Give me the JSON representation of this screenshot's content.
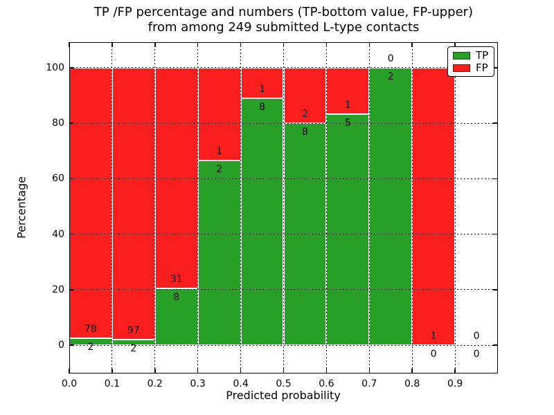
{
  "title": {
    "line1": "TP /FP percentage and numbers (TP-bottom value, FP-upper)",
    "line2": "from among 249 submitted L-type contacts"
  },
  "axes": {
    "xlabel": "Predicted probability",
    "ylabel": "Percentage",
    "x_ticks": [
      "0.0",
      "0.1",
      "0.2",
      "0.3",
      "0.4",
      "0.5",
      "0.6",
      "0.7",
      "0.8",
      "0.9"
    ],
    "y_ticks": [
      0,
      20,
      40,
      60,
      80,
      100
    ],
    "grid_style": "dotted"
  },
  "legend": {
    "position": "upper-right-inside"
  },
  "chart_data": {
    "type": "bar",
    "stacked": true,
    "title": "TP /FP percentage and numbers (TP-bottom value, FP-upper) from among 249 submitted L-type contacts",
    "xlabel": "Predicted probability",
    "ylabel": "Percentage",
    "total_submitted": 249,
    "xlim": [
      0.0,
      1.0
    ],
    "ylim": [
      -10.2,
      109.2
    ],
    "bin_width": 0.1,
    "series": [
      {
        "name": "TP",
        "color": "#28a028"
      },
      {
        "name": "FP",
        "color": "#fa1e1e"
      }
    ],
    "bins": [
      {
        "x0": 0.0,
        "x1": 0.1,
        "tp": 2,
        "fp": 78
      },
      {
        "x0": 0.1,
        "x1": 0.2,
        "tp": 2,
        "fp": 97
      },
      {
        "x0": 0.2,
        "x1": 0.3,
        "tp": 8,
        "fp": 31
      },
      {
        "x0": 0.3,
        "x1": 0.4,
        "tp": 2,
        "fp": 1
      },
      {
        "x0": 0.4,
        "x1": 0.5,
        "tp": 8,
        "fp": 1
      },
      {
        "x0": 0.5,
        "x1": 0.6,
        "tp": 8,
        "fp": 2
      },
      {
        "x0": 0.6,
        "x1": 0.7,
        "tp": 5,
        "fp": 1
      },
      {
        "x0": 0.7,
        "x1": 0.8,
        "tp": 2,
        "fp": 0
      },
      {
        "x0": 0.8,
        "x1": 0.9,
        "tp": 0,
        "fp": 1
      },
      {
        "x0": 0.9,
        "x1": 1.0,
        "tp": 0,
        "fp": 0
      }
    ],
    "annotation_note": "FP count printed above TP/FP boundary, TP count below it"
  }
}
